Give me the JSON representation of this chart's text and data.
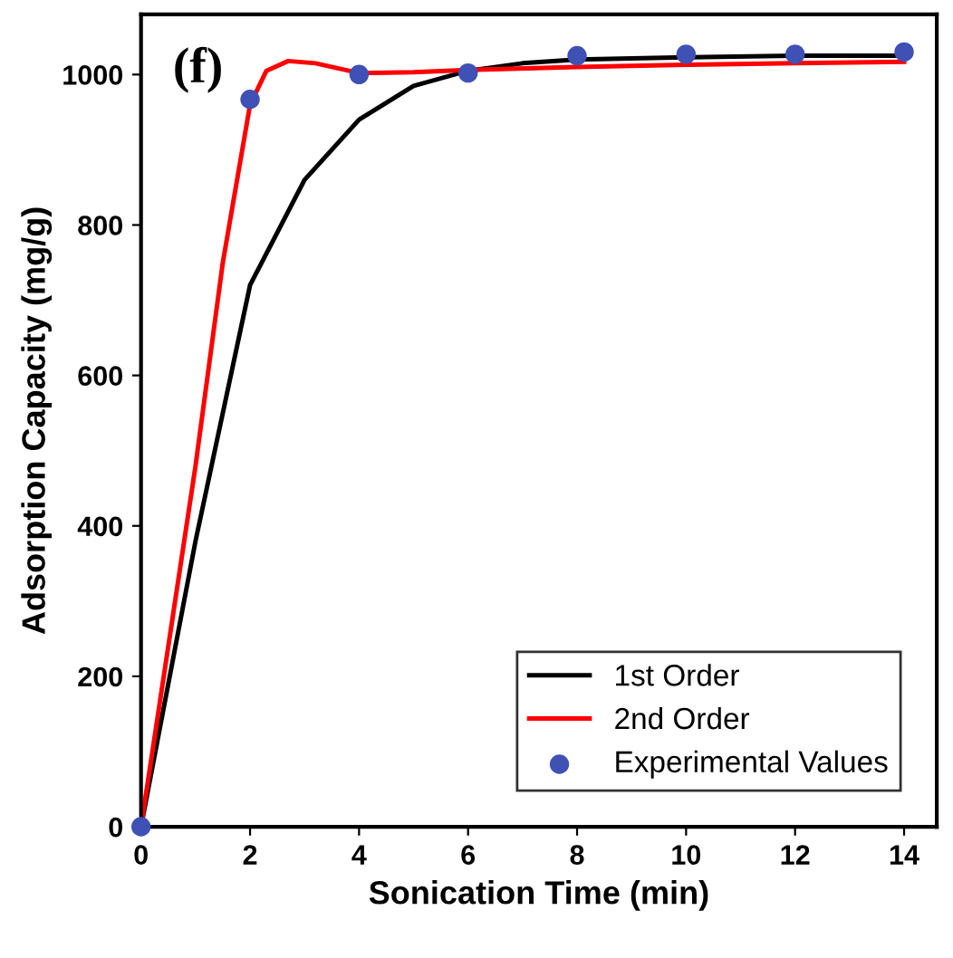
{
  "chart_data": {
    "type": "line",
    "xlabel": "Sonication Time (min)",
    "ylabel": "Adsorption Capacity (mg/g)",
    "annotations": [
      "(f)"
    ],
    "xlim": [
      0,
      14.6
    ],
    "xticks": [
      0,
      2,
      4,
      6,
      8,
      10,
      12,
      14
    ],
    "ylim": [
      0,
      1080
    ],
    "yticks": [
      0,
      200,
      400,
      600,
      800,
      1000
    ],
    "grid": false,
    "legend": "bottom right",
    "series": [
      {
        "name": "1st Order",
        "color": "#000000",
        "marker": "none",
        "x": [
          0,
          1,
          2,
          3,
          4,
          5,
          6,
          7,
          8,
          10,
          12,
          14
        ],
        "values": [
          0,
          380,
          720,
          860,
          940,
          985,
          1005,
          1015,
          1020,
          1023,
          1025,
          1025
        ]
      },
      {
        "name": "2nd Order",
        "color": "#ff0000",
        "marker": "none",
        "x": [
          0,
          1,
          1.5,
          2,
          2.3,
          2.7,
          3.2,
          4,
          5,
          6,
          8,
          10,
          12,
          14
        ],
        "values": [
          0,
          480,
          750,
          960,
          1005,
          1018,
          1015,
          1002,
          1003,
          1006,
          1010,
          1013,
          1015,
          1017
        ]
      },
      {
        "name": "Experimental Values",
        "type": "scatter",
        "color": "#3f51b5",
        "marker": "circle",
        "x": [
          0,
          2,
          4,
          6,
          8,
          10,
          12,
          14
        ],
        "values": [
          0,
          967,
          1000,
          1002,
          1025,
          1027,
          1027,
          1030
        ]
      }
    ]
  }
}
